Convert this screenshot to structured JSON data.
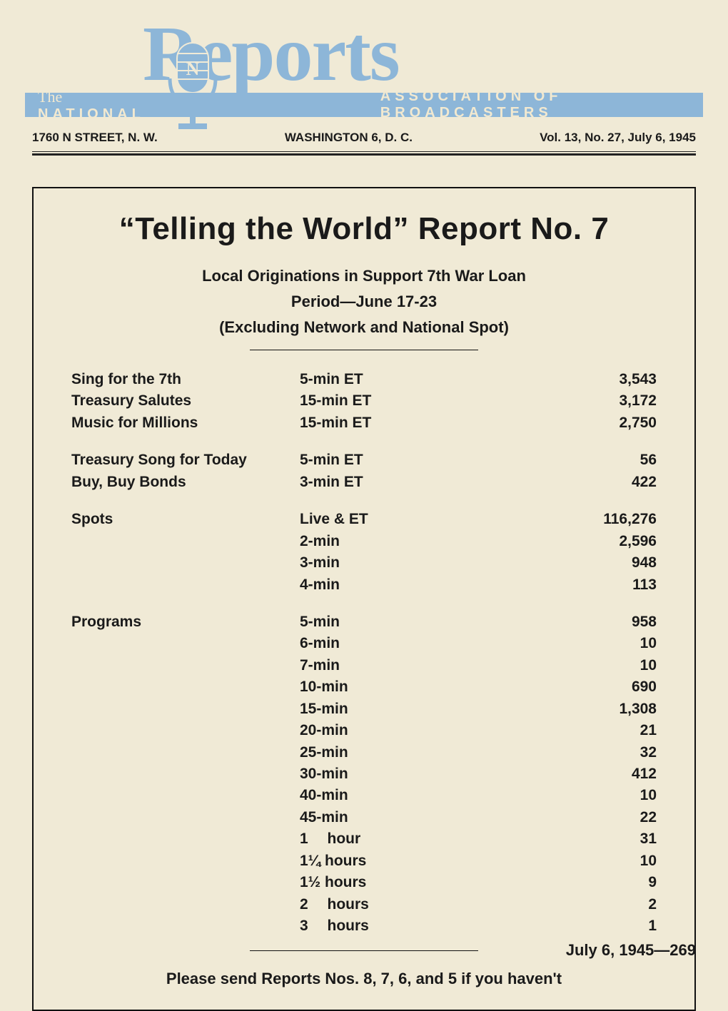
{
  "masthead": {
    "logo_text": "Reports",
    "banner_the": "The",
    "banner_left": "NATIONAL",
    "banner_right": "ASSOCIATION  OF  BROADCASTERS",
    "address": "1760 N STREET, N. W.",
    "city": "WASHINGTON 6, D. C.",
    "issue": "Vol. 13, No. 27, July 6, 1945",
    "logo_color": "#8db6d8",
    "banner_bg": "#8db6d8",
    "banner_text_color": "#f2e9d0"
  },
  "report": {
    "title": "“Telling the World” Report No. 7",
    "subtitle1": "Local Originations in Support 7th War Loan",
    "subtitle2": "Period—June  17-23",
    "subtitle3": "(Excluding  Network  and  National  Spot)",
    "footer_note": "Please send Reports Nos. 8, 7, 6, and 5 if you haven't",
    "title_fontsize": 44,
    "sub_fontsize": 22,
    "body_fontsize": 21
  },
  "groups": [
    {
      "rows": [
        {
          "name": "Sing for the 7th",
          "duration": "5-min  ET",
          "count": "3,543"
        },
        {
          "name": "Treasury Salutes",
          "duration": "15-min  ET",
          "count": "3,172"
        },
        {
          "name": "Music for Millions",
          "duration": "15-min  ET",
          "count": "2,750"
        }
      ]
    },
    {
      "rows": [
        {
          "name": "Treasury Song for Today",
          "duration": "5-min  ET",
          "count": "56"
        },
        {
          "name": "Buy, Buy Bonds",
          "duration": "3-min  ET",
          "count": "422"
        }
      ]
    },
    {
      "rows": [
        {
          "name": "Spots",
          "duration": "Live  &  ET",
          "count": "116,276"
        },
        {
          "name": "",
          "duration": "2-min",
          "count": "2,596"
        },
        {
          "name": "",
          "duration": "3-min",
          "count": "948"
        },
        {
          "name": "",
          "duration": "4-min",
          "count": "113"
        }
      ]
    },
    {
      "rows": [
        {
          "name": "Programs",
          "duration": "5-min",
          "count": "958"
        },
        {
          "name": "",
          "duration": "6-min",
          "count": "10"
        },
        {
          "name": "",
          "duration": "7-min",
          "count": "10"
        },
        {
          "name": "",
          "duration": "10-min",
          "count": "690"
        },
        {
          "name": "",
          "duration": "15-min",
          "count": "1,308"
        },
        {
          "name": "",
          "duration": "20-min",
          "count": "21"
        },
        {
          "name": "",
          "duration": "25-min",
          "count": "32"
        },
        {
          "name": "",
          "duration": "30-min",
          "count": "412"
        },
        {
          "name": "",
          "duration": "40-min",
          "count": "10"
        },
        {
          "name": "",
          "duration": "45-min",
          "count": "22"
        },
        {
          "name": "",
          "duration": "1  hour",
          "count": "31"
        },
        {
          "name": "",
          "duration": "1¼  hours",
          "count": "10"
        },
        {
          "name": "",
          "duration": "1½  hours",
          "count": "9"
        },
        {
          "name": "",
          "duration": "2  hours",
          "count": "2"
        },
        {
          "name": "",
          "duration": "3  hours",
          "count": "1"
        }
      ]
    }
  ],
  "page_footer": "July 6, 1945—269",
  "colors": {
    "paper": "#f0ead6",
    "ink": "#1a1a1a",
    "accent": "#8db6d8"
  }
}
